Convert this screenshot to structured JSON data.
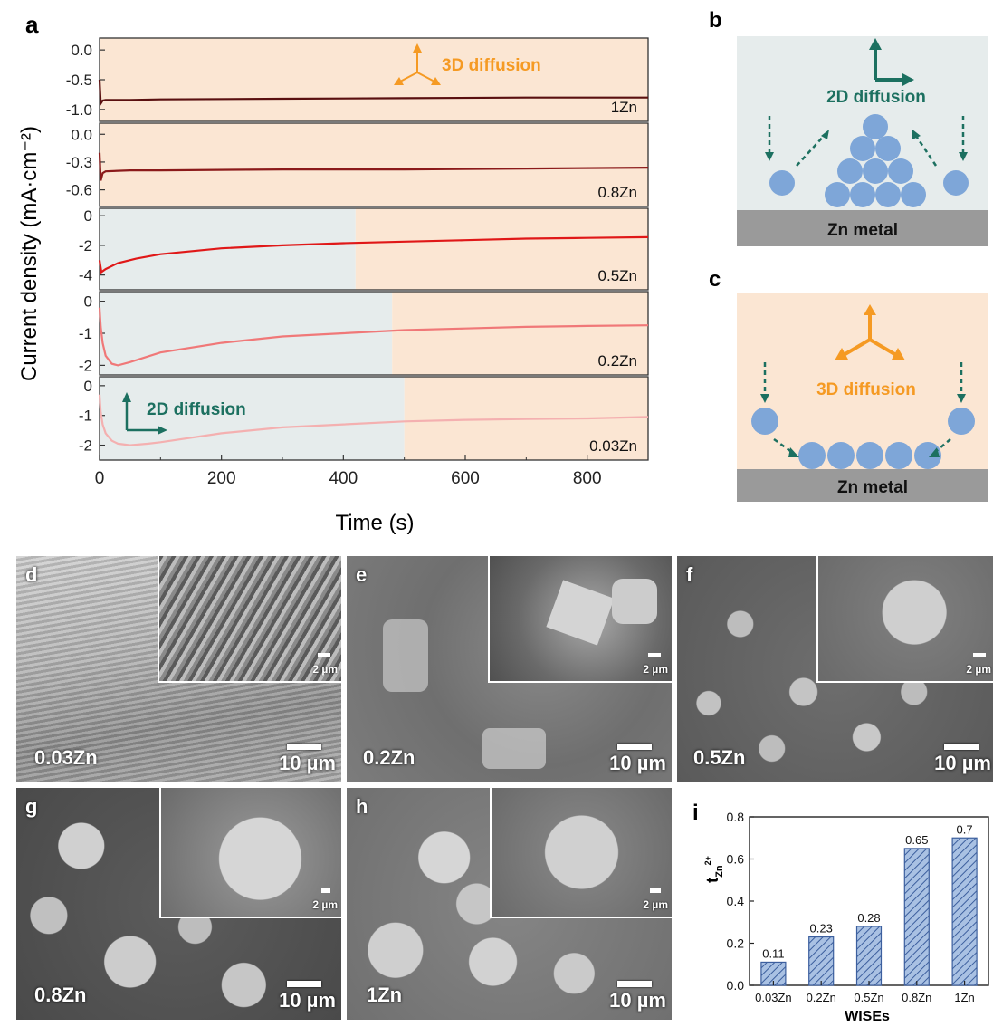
{
  "chart_data": [
    {
      "panel": "a",
      "type": "line",
      "xlabel": "Time (s)",
      "ylabel": "Current density (mA·cm⁻²)",
      "xlim": [
        0,
        900
      ],
      "xticks": [
        "0",
        "200",
        "400",
        "600",
        "800"
      ],
      "subplots": [
        {
          "name": "1Zn",
          "ylim": [
            -1.2,
            0.2
          ],
          "yticks": [
            "0.0",
            "-0.5",
            "-1.0"
          ],
          "color": "#5a1010",
          "x": [
            0,
            2,
            5,
            10,
            50,
            100,
            300,
            500,
            700,
            900
          ],
          "y": [
            -0.5,
            -0.9,
            -0.85,
            -0.84,
            -0.84,
            -0.83,
            -0.82,
            -0.81,
            -0.8,
            -0.8
          ],
          "shading": [
            {
              "from": 0,
              "to": 900,
              "region": "3D"
            }
          ]
        },
        {
          "name": "0.8Zn",
          "ylim": [
            -0.78,
            0.12
          ],
          "yticks": [
            "0.0",
            "-0.3",
            "-0.6"
          ],
          "color": "#8b1a1a",
          "x": [
            0,
            2,
            5,
            10,
            50,
            100,
            300,
            500,
            700,
            900
          ],
          "y": [
            -0.2,
            -0.5,
            -0.42,
            -0.4,
            -0.39,
            -0.39,
            -0.38,
            -0.38,
            -0.37,
            -0.36
          ],
          "shading": [
            {
              "from": 0,
              "to": 900,
              "region": "3D"
            }
          ]
        },
        {
          "name": "0.5Zn",
          "ylim": [
            -5,
            0.5
          ],
          "yticks": [
            "0",
            "-2",
            "-4"
          ],
          "color": "#e01818",
          "x": [
            0,
            3,
            10,
            30,
            60,
            100,
            200,
            300,
            400,
            500,
            600,
            700,
            800,
            900
          ],
          "y": [
            -3.0,
            -3.8,
            -3.6,
            -3.2,
            -2.9,
            -2.6,
            -2.2,
            -2.0,
            -1.85,
            -1.75,
            -1.65,
            -1.55,
            -1.5,
            -1.45
          ],
          "shading": [
            {
              "from": 0,
              "to": 420,
              "region": "2D"
            },
            {
              "from": 420,
              "to": 900,
              "region": "3D"
            }
          ]
        },
        {
          "name": "0.2Zn",
          "ylim": [
            -2.3,
            0.3
          ],
          "yticks": [
            "0",
            "-1",
            "-2"
          ],
          "color": "#f07878",
          "x": [
            0,
            2,
            5,
            10,
            20,
            30,
            50,
            100,
            200,
            300,
            400,
            500,
            600,
            700,
            800,
            900
          ],
          "y": [
            -0.2,
            -0.8,
            -1.3,
            -1.7,
            -1.95,
            -2.0,
            -1.9,
            -1.6,
            -1.3,
            -1.1,
            -1.0,
            -0.9,
            -0.85,
            -0.8,
            -0.77,
            -0.75
          ],
          "shading": [
            {
              "from": 0,
              "to": 480,
              "region": "2D"
            },
            {
              "from": 480,
              "to": 900,
              "region": "3D"
            }
          ]
        },
        {
          "name": "0.03Zn",
          "ylim": [
            -2.5,
            0.3
          ],
          "yticks": [
            "0",
            "-1",
            "-2"
          ],
          "color": "#f4b0b0",
          "x": [
            0,
            2,
            5,
            10,
            20,
            30,
            50,
            80,
            100,
            200,
            300,
            400,
            500,
            600,
            700,
            800,
            900
          ],
          "y": [
            -0.3,
            -0.9,
            -1.3,
            -1.6,
            -1.85,
            -1.95,
            -2.0,
            -1.95,
            -1.9,
            -1.6,
            -1.4,
            -1.3,
            -1.2,
            -1.15,
            -1.12,
            -1.1,
            -1.05
          ],
          "shading": [
            {
              "from": 0,
              "to": 500,
              "region": "2D"
            },
            {
              "from": 500,
              "to": 900,
              "region": "3D"
            }
          ]
        }
      ],
      "annotations": [
        "3D diffusion",
        "2D diffusion"
      ]
    },
    {
      "panel": "i",
      "type": "bar",
      "categories": [
        "0.03Zn",
        "0.2Zn",
        "0.5Zn",
        "0.8Zn",
        "1Zn"
      ],
      "values": [
        0.11,
        0.23,
        0.28,
        0.65,
        0.7
      ],
      "value_labels": [
        "0.11",
        "0.23",
        "0.28",
        "0.65",
        "0.7"
      ],
      "xlabel": "WISEs",
      "ylabel": "t",
      "ylabel_sub": "Zn",
      "ylabel_sup": "2+",
      "ylim": [
        0,
        0.8
      ],
      "yticks": [
        "0.0",
        "0.2",
        "0.4",
        "0.6",
        "0.8"
      ],
      "bar_color": "#a9c1e3",
      "hatch_color": "#3c5f9e"
    }
  ],
  "panels": {
    "a": {
      "letter": "a"
    },
    "b": {
      "letter": "b",
      "label": "2D diffusion",
      "substrate": "Zn metal"
    },
    "c": {
      "letter": "c",
      "label": "3D diffusion",
      "substrate": "Zn metal"
    },
    "i": {
      "letter": "i"
    }
  },
  "sem": [
    {
      "letter": "d",
      "sample": "0.03Zn",
      "scale": "10 µm",
      "inset_scale": "2 µm"
    },
    {
      "letter": "e",
      "sample": "0.2Zn",
      "scale": "10 µm",
      "inset_scale": "2 µm"
    },
    {
      "letter": "f",
      "sample": "0.5Zn",
      "scale": "10 µm",
      "inset_scale": "2 µm"
    },
    {
      "letter": "g",
      "sample": "0.8Zn",
      "scale": "10 µm",
      "inset_scale": "2 µm"
    },
    {
      "letter": "h",
      "sample": "1Zn",
      "scale": "10 µm",
      "inset_scale": "2 µm"
    }
  ],
  "colors": {
    "region_3d": "#fbe6d3",
    "region_2d": "#e6ecec",
    "diffusion_3d": "#f59a23",
    "diffusion_2d": "#1c7060",
    "ion": "#7ea6d8",
    "substrate": "#9a9a9a"
  }
}
